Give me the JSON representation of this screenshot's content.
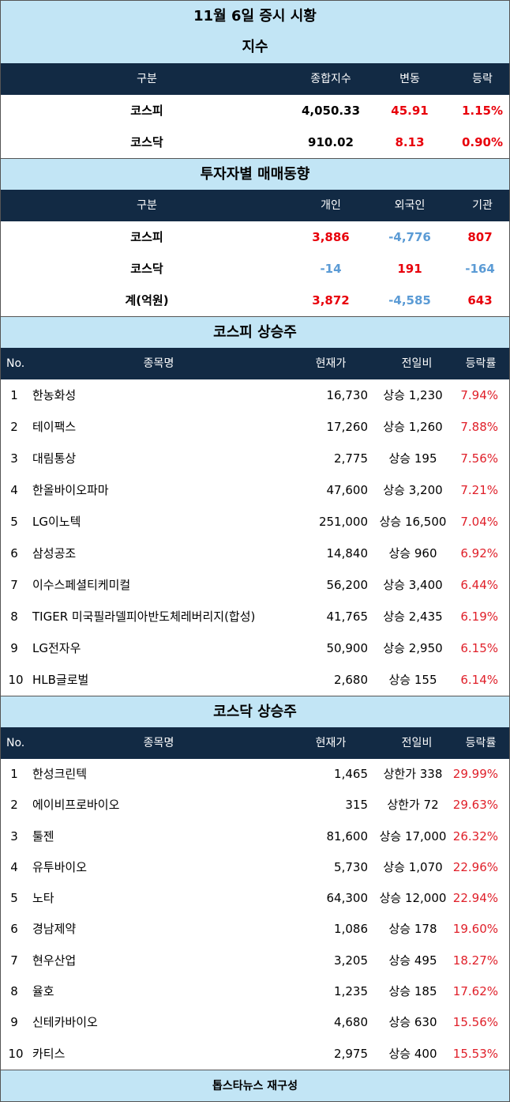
{
  "title": "11월 6일 증시 시황",
  "index": {
    "section": "지수",
    "headers": [
      "구분",
      "종합지수",
      "변동",
      "등락"
    ],
    "rows": [
      {
        "name": "코스피",
        "value": "4,050.33",
        "change": "45.91",
        "rate": "1.15%"
      },
      {
        "name": "코스닥",
        "value": "910.02",
        "change": "8.13",
        "rate": "0.90%"
      }
    ]
  },
  "investor": {
    "section": "투자자별 매매동향",
    "headers": [
      "구분",
      "개인",
      "외국인",
      "기관"
    ],
    "rows": [
      {
        "name": "코스피",
        "personal": "3,886",
        "foreign": "-4,776",
        "inst": "807"
      },
      {
        "name": "코스닥",
        "personal": "-14",
        "foreign": "191",
        "inst": "-164"
      },
      {
        "name": "계(억원)",
        "personal": "3,872",
        "foreign": "-4,585",
        "inst": "643"
      }
    ]
  },
  "kospi": {
    "section": "코스피 상승주",
    "headers": [
      "No.",
      "종목명",
      "현재가",
      "전일비",
      "등락률"
    ],
    "rows": [
      {
        "no": "1",
        "name": "한농화성",
        "price": "16,730",
        "diff": "상승 1,230",
        "rate": "7.94%"
      },
      {
        "no": "2",
        "name": "테이팩스",
        "price": "17,260",
        "diff": "상승 1,260",
        "rate": "7.88%"
      },
      {
        "no": "3",
        "name": "대림통상",
        "price": "2,775",
        "diff": "상승 195",
        "rate": "7.56%"
      },
      {
        "no": "4",
        "name": "한올바이오파마",
        "price": "47,600",
        "diff": "상승 3,200",
        "rate": "7.21%"
      },
      {
        "no": "5",
        "name": "LG이노텍",
        "price": "251,000",
        "diff": "상승 16,500",
        "rate": "7.04%"
      },
      {
        "no": "6",
        "name": "삼성공조",
        "price": "14,840",
        "diff": "상승 960",
        "rate": "6.92%"
      },
      {
        "no": "7",
        "name": "이수스페셜티케미컬",
        "price": "56,200",
        "diff": "상승 3,400",
        "rate": "6.44%"
      },
      {
        "no": "8",
        "name": "TIGER 미국필라델피아반도체레버리지(합성)",
        "price": "41,765",
        "diff": "상승 2,435",
        "rate": "6.19%"
      },
      {
        "no": "9",
        "name": "LG전자우",
        "price": "50,900",
        "diff": "상승 2,950",
        "rate": "6.15%"
      },
      {
        "no": "10",
        "name": "HLB글로벌",
        "price": "2,680",
        "diff": "상승 155",
        "rate": "6.14%"
      }
    ]
  },
  "kosdaq": {
    "section": "코스닥 상승주",
    "headers": [
      "No.",
      "종목명",
      "현재가",
      "전일비",
      "등락률"
    ],
    "rows": [
      {
        "no": "1",
        "name": "한성크린텍",
        "price": "1,465",
        "diff": "상한가 338",
        "rate": "29.99%"
      },
      {
        "no": "2",
        "name": "에이비프로바이오",
        "price": "315",
        "diff": "상한가 72",
        "rate": "29.63%"
      },
      {
        "no": "3",
        "name": "툴젠",
        "price": "81,600",
        "diff": "상승 17,000",
        "rate": "26.32%"
      },
      {
        "no": "4",
        "name": "유투바이오",
        "price": "5,730",
        "diff": "상승 1,070",
        "rate": "22.96%"
      },
      {
        "no": "5",
        "name": "노타",
        "price": "64,300",
        "diff": "상승 12,000",
        "rate": "22.94%"
      },
      {
        "no": "6",
        "name": "경남제약",
        "price": "1,086",
        "diff": "상승 178",
        "rate": "19.60%"
      },
      {
        "no": "7",
        "name": "현우산업",
        "price": "3,205",
        "diff": "상승 495",
        "rate": "18.27%"
      },
      {
        "no": "8",
        "name": "율호",
        "price": "1,235",
        "diff": "상승 185",
        "rate": "17.62%"
      },
      {
        "no": "9",
        "name": "신테카바이오",
        "price": "4,680",
        "diff": "상승 630",
        "rate": "15.56%"
      },
      {
        "no": "10",
        "name": "카티스",
        "price": "2,975",
        "diff": "상승 400",
        "rate": "15.53%"
      }
    ]
  },
  "footer": "톱스타뉴스 재구성"
}
